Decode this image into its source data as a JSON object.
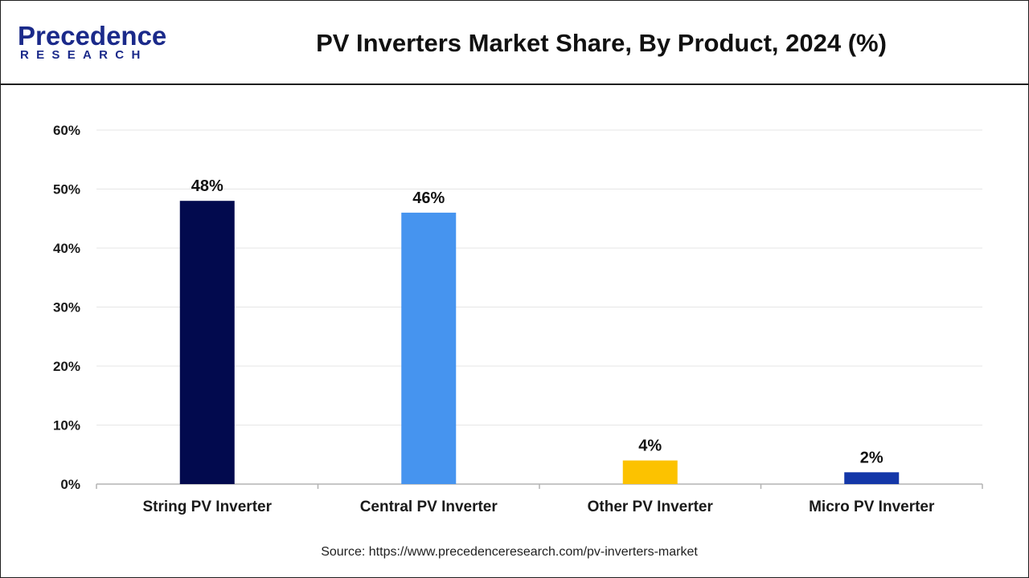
{
  "header": {
    "logo_main": "Precedence",
    "logo_sub": "RESEARCH",
    "title": "PV Inverters Market Share, By Product, 2024 (%)"
  },
  "source": "Source: https://www.precedenceresearch.com/pv-inverters-market",
  "chart_data": {
    "type": "bar",
    "title": "PV Inverters Market Share, By Product, 2024 (%)",
    "xlabel": "",
    "ylabel": "",
    "categories": [
      "String PV Inverter",
      "Central PV Inverter",
      "Other PV Inverter",
      "Micro PV Inverter"
    ],
    "values": [
      48,
      46,
      4,
      2
    ],
    "data_labels": [
      "48%",
      "46%",
      "4%",
      "2%"
    ],
    "colors": [
      "#020a4e",
      "#4694ef",
      "#fcc200",
      "#1437a8"
    ],
    "ylim": [
      0,
      60
    ],
    "yticks": [
      0,
      10,
      20,
      30,
      40,
      50,
      60
    ],
    "ytick_labels": [
      "0%",
      "10%",
      "20%",
      "30%",
      "40%",
      "50%",
      "60%"
    ],
    "grid": true,
    "legend": "none"
  }
}
